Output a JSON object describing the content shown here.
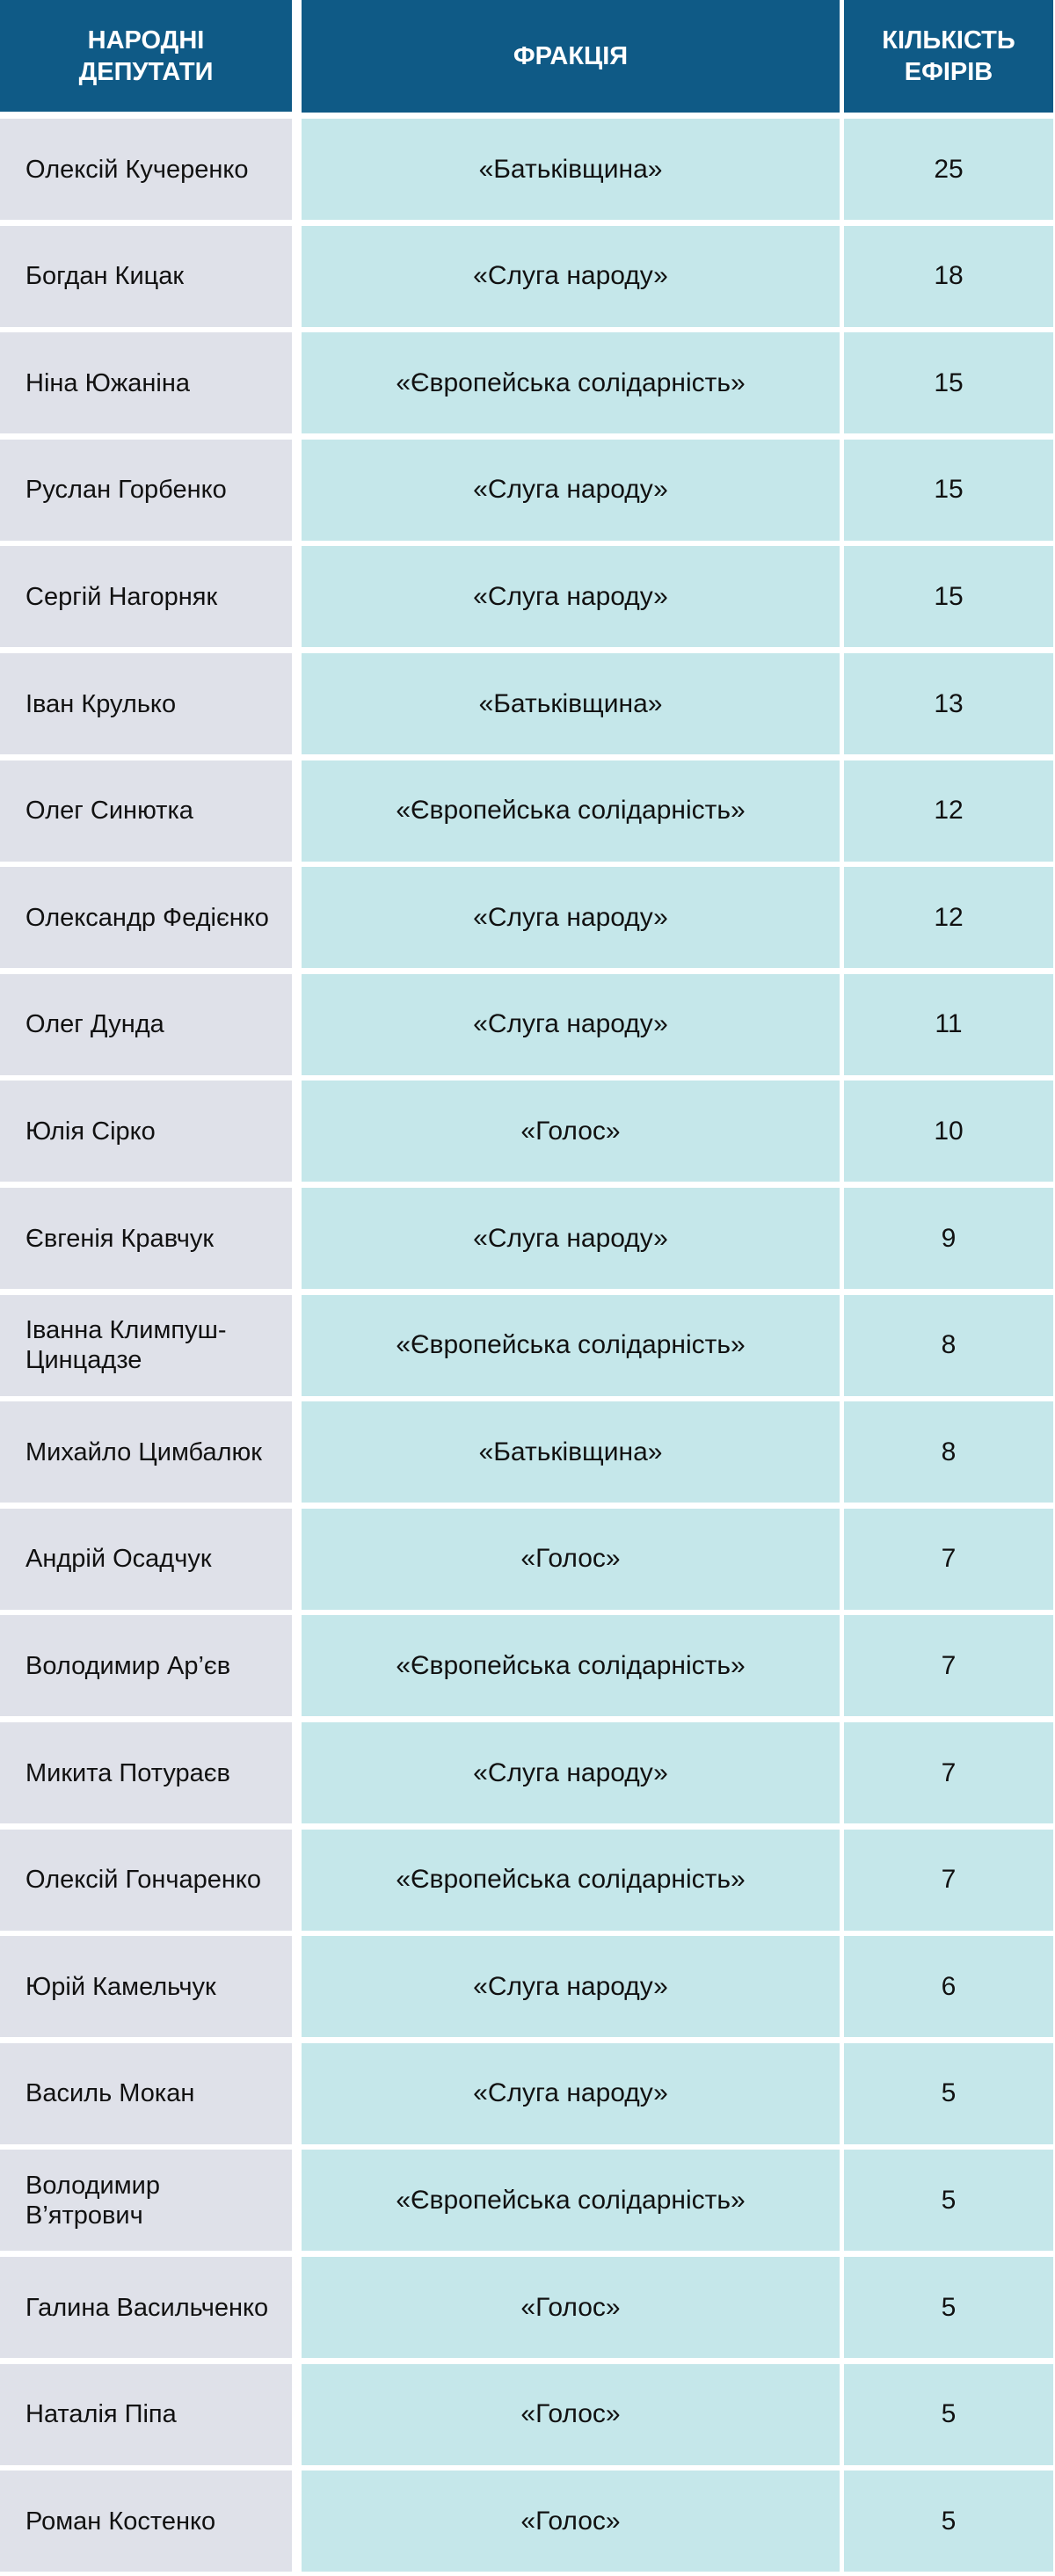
{
  "header": {
    "deputies": "НАРОДНІ\nДЕПУТАТИ",
    "faction": "ФРАКЦІЯ",
    "count": "КІЛЬКІСТЬ\nЕФІРІВ"
  },
  "colors": {
    "header_bg": "#0f5a86",
    "name_bg": "#dfe1e9",
    "data_bg": "#c5e7ea"
  },
  "rows": [
    {
      "name": "Олексій Кучеренко",
      "faction": "«Батьківщина»",
      "count": "25"
    },
    {
      "name": "Богдан Кицак",
      "faction": "«Слуга народу»",
      "count": "18"
    },
    {
      "name": "Ніна Южаніна",
      "faction": "«Європейська солідарність»",
      "count": "15"
    },
    {
      "name": "Руслан Горбенко",
      "faction": "«Слуга народу»",
      "count": "15"
    },
    {
      "name": "Сергій Нагорняк",
      "faction": "«Слуга народу»",
      "count": "15"
    },
    {
      "name": "Іван Крулько",
      "faction": "«Батьківщина»",
      "count": "13"
    },
    {
      "name": "Олег Синютка",
      "faction": "«Європейська солідарність»",
      "count": "12"
    },
    {
      "name": "Олександр Федієнко",
      "faction": "«Слуга народу»",
      "count": "12"
    },
    {
      "name": "Олег Дунда",
      "faction": "«Слуга народу»",
      "count": "11"
    },
    {
      "name": "Юлія Сірко",
      "faction": "«Голос»",
      "count": "10"
    },
    {
      "name": "Євгенія Кравчук",
      "faction": "«Слуга народу»",
      "count": "9"
    },
    {
      "name": "Іванна Климпуш-\nЦинцадзе",
      "faction": "«Європейська солідарність»",
      "count": "8"
    },
    {
      "name": "Михайло Цимбалюк",
      "faction": "«Батьківщина»",
      "count": "8"
    },
    {
      "name": "Андрій Осадчук",
      "faction": "«Голос»",
      "count": "7"
    },
    {
      "name": "Володимир Ар’єв",
      "faction": "«Європейська солідарність»",
      "count": "7"
    },
    {
      "name": "Микита Потураєв",
      "faction": "«Слуга народу»",
      "count": "7"
    },
    {
      "name": "Олексій Гончаренко",
      "faction": "«Європейська солідарність»",
      "count": "7"
    },
    {
      "name": "Юрій Камельчук",
      "faction": "«Слуга народу»",
      "count": "6"
    },
    {
      "name": "Василь Мокан",
      "faction": "«Слуга народу»",
      "count": "5"
    },
    {
      "name": "Володимир\nВ’ятрович",
      "faction": "«Європейська солідарність»",
      "count": "5"
    },
    {
      "name": "Галина Васильченко",
      "faction": "«Голос»",
      "count": "5"
    },
    {
      "name": "Наталія Піпа",
      "faction": "«Голос»",
      "count": "5"
    },
    {
      "name": "Роман Костенко",
      "faction": "«Голос»",
      "count": "5"
    }
  ]
}
